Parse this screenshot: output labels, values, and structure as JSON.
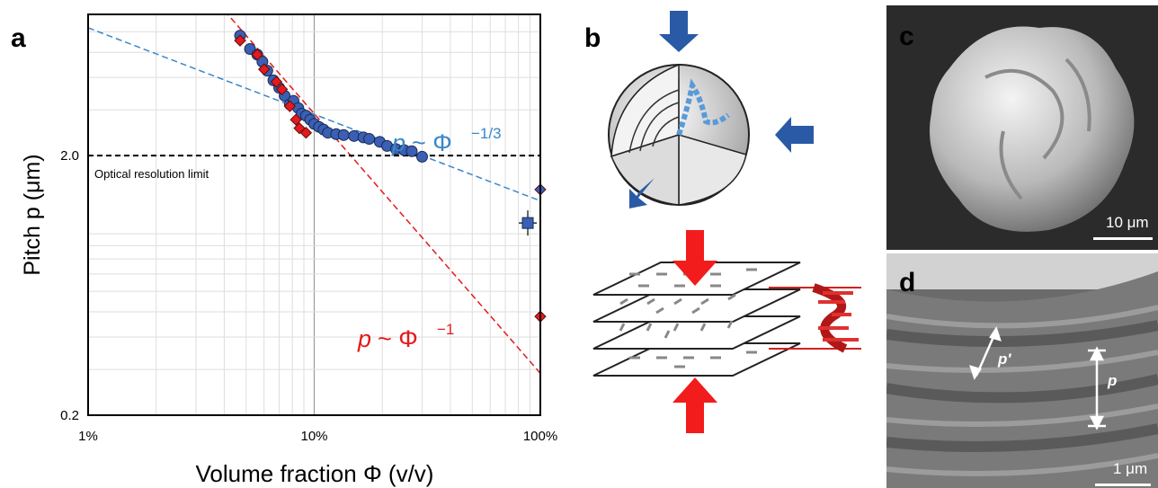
{
  "panels": {
    "a": "a",
    "b": "b",
    "c": "c",
    "d": "d"
  },
  "chart_data": {
    "type": "scatter",
    "xlabel": "Volume fraction Φ (v/v)",
    "ylabel": "Pitch p (μm)",
    "x_scale": "log",
    "y_scale": "log",
    "xlim": [
      0.01,
      1.0
    ],
    "ylim": [
      0.2,
      7.0
    ],
    "x_ticks": [
      0.01,
      0.1,
      1.0
    ],
    "x_tick_labels": [
      "1%",
      "10%",
      "100%"
    ],
    "y_ticks": [
      0.2,
      2.0
    ],
    "y_tick_labels": [
      "0.2",
      "2.0"
    ],
    "grid": true,
    "hline": {
      "y": 2.0,
      "label": "Optical resolution limit",
      "color": "#000000"
    },
    "fits": [
      {
        "label": "p ~ Φ^(−1/3)",
        "exponent": -0.3333,
        "through": [
          0.3,
          2.0
        ],
        "color": "#3a87c8"
      },
      {
        "label": "p ~ Φ^(−1)",
        "exponent": -1,
        "through": [
          0.0967,
          3.0
        ],
        "color": "#e41a1c"
      }
    ],
    "series": [
      {
        "marker": "circle",
        "color": "#3a5fb4",
        "x": [
          0.047,
          0.052,
          0.056,
          0.059,
          0.062,
          0.066,
          0.07,
          0.074,
          0.078,
          0.081,
          0.085,
          0.088,
          0.092,
          0.096,
          0.1,
          0.105,
          0.11,
          0.115,
          0.125,
          0.135,
          0.15,
          0.165,
          0.175,
          0.195,
          0.21,
          0.23,
          0.25,
          0.27,
          0.3
        ],
        "y": [
          5.8,
          5.15,
          4.9,
          4.6,
          4.25,
          3.9,
          3.65,
          3.4,
          3.15,
          3.25,
          3.05,
          2.9,
          2.85,
          2.75,
          2.65,
          2.58,
          2.52,
          2.45,
          2.42,
          2.4,
          2.38,
          2.35,
          2.32,
          2.26,
          2.18,
          2.12,
          2.1,
          2.08,
          1.98
        ]
      },
      {
        "marker": "diamond",
        "color": "#e41a1c",
        "x": [
          0.047,
          0.056,
          0.06,
          0.068,
          0.072,
          0.078,
          0.083,
          0.086,
          0.092
        ],
        "y": [
          5.55,
          4.9,
          4.3,
          3.85,
          3.6,
          3.1,
          2.75,
          2.55,
          2.45
        ]
      },
      {
        "marker": "diamond",
        "color": "#3a5fb4",
        "x": [
          1.0
        ],
        "y": [
          1.48
        ]
      },
      {
        "marker": "square",
        "color": "#3a5fb4",
        "x": [
          0.88
        ],
        "y": [
          1.1
        ]
      },
      {
        "marker": "diamond",
        "color": "#e41a1c",
        "x": [
          1.0
        ],
        "y": [
          0.48
        ]
      }
    ]
  },
  "sem_c": {
    "scale_label": "10 μm"
  },
  "sem_d": {
    "scale_label": "1 μm",
    "label_p_prime": "p′",
    "label_p": "p"
  }
}
